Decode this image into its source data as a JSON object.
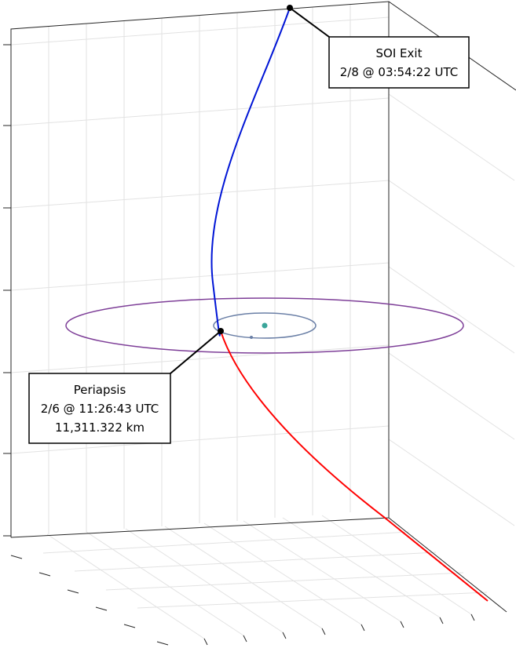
{
  "annotations": [
    {
      "lines": [
        "SOI Exit",
        "2/8 @ 03:54:22 UTC"
      ]
    },
    {
      "lines": [
        "Periapsis",
        "2/6 @ 11:26:43 UTC",
        "11,311.322 km"
      ]
    }
  ]
}
